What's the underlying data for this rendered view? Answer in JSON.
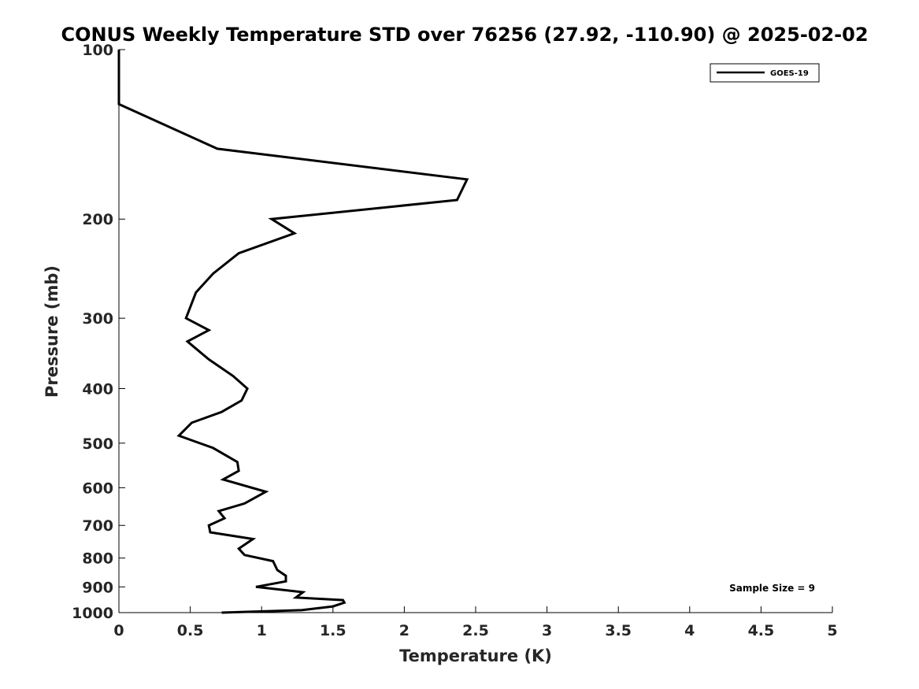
{
  "chart_data": {
    "type": "line",
    "title": "CONUS Weekly Temperature STD over 76256 (27.92, -110.90) @ 2025-02-02",
    "xlabel": "Temperature (K)",
    "ylabel": "Pressure (mb)",
    "xlim": [
      0,
      5
    ],
    "ylim": [
      1000,
      100
    ],
    "y_scale": "log",
    "x_ticks": [
      0,
      0.5,
      1,
      1.5,
      2,
      2.5,
      3,
      3.5,
      4,
      4.5,
      5
    ],
    "x_tick_labels": [
      "0",
      "0.5",
      "1",
      "1.5",
      "2",
      "2.5",
      "3",
      "3.5",
      "4",
      "4.5",
      "5"
    ],
    "y_ticks": [
      100,
      200,
      300,
      400,
      500,
      600,
      700,
      800,
      900,
      1000
    ],
    "y_tick_labels": [
      "100",
      "200",
      "300",
      "400",
      "500",
      "600",
      "700",
      "800",
      "900",
      "1000"
    ],
    "grid": false,
    "legend": "top-right",
    "annotation": "Sample Size = 9",
    "series": [
      {
        "name": "GOES-19",
        "color": "#000000",
        "points": [
          [
            0,
            100
          ],
          [
            0,
            125
          ],
          [
            0.69,
            150
          ],
          [
            2.44,
            170
          ],
          [
            2.37,
            185
          ],
          [
            1.07,
            200
          ],
          [
            1.23,
            212
          ],
          [
            0.84,
            230
          ],
          [
            0.66,
            250
          ],
          [
            0.54,
            270
          ],
          [
            0.47,
            300
          ],
          [
            0.63,
            315
          ],
          [
            0.48,
            330
          ],
          [
            0.63,
            355
          ],
          [
            0.8,
            380
          ],
          [
            0.9,
            400
          ],
          [
            0.86,
            420
          ],
          [
            0.72,
            440
          ],
          [
            0.51,
            460
          ],
          [
            0.42,
            485
          ],
          [
            0.66,
            510
          ],
          [
            0.83,
            540
          ],
          [
            0.84,
            560
          ],
          [
            0.73,
            580
          ],
          [
            1.03,
            610
          ],
          [
            0.88,
            640
          ],
          [
            0.7,
            660
          ],
          [
            0.74,
            680
          ],
          [
            0.63,
            700
          ],
          [
            0.64,
            720
          ],
          [
            0.94,
            740
          ],
          [
            0.84,
            770
          ],
          [
            0.88,
            790
          ],
          [
            1.08,
            810
          ],
          [
            1.11,
            840
          ],
          [
            1.17,
            860
          ],
          [
            1.17,
            880
          ],
          [
            0.96,
            900
          ],
          [
            1.29,
            920
          ],
          [
            1.24,
            940
          ],
          [
            1.57,
            950
          ],
          [
            1.58,
            960
          ],
          [
            1.5,
            975
          ],
          [
            1.28,
            990
          ],
          [
            0.72,
            1000
          ]
        ]
      }
    ]
  }
}
